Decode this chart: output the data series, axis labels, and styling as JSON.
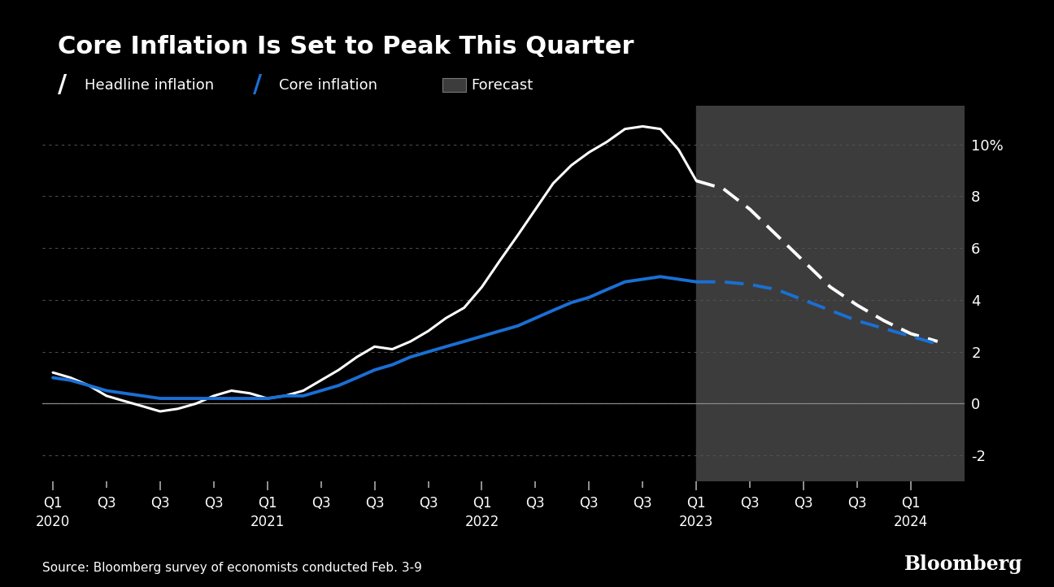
{
  "title": "Core Inflation Is Set to Peak This Quarter",
  "source": "Source: Bloomberg survey of economists conducted Feb. 3-9",
  "background_color": "#000000",
  "plot_bg_color": "#000000",
  "forecast_bg_color": "#3c3c3c",
  "ylim": [
    -3,
    11.5
  ],
  "yticks": [
    -2,
    0,
    2,
    4,
    6,
    8,
    10
  ],
  "ytick_labels": [
    "-2",
    "0",
    "2",
    "4",
    "6",
    "8",
    "10%"
  ],
  "forecast_start_x": 12.0,
  "headline_color": "#ffffff",
  "core_color": "#1a6fd4",
  "headline_actual_x": [
    0,
    0.33,
    0.67,
    1.0,
    1.33,
    1.67,
    2.0,
    2.33,
    2.67,
    3.0,
    3.33,
    3.67,
    4.0,
    4.33,
    4.67,
    5.0,
    5.33,
    5.67,
    6.0,
    6.33,
    6.67,
    7.0,
    7.33,
    7.67,
    8.0,
    8.33,
    8.67,
    9.0,
    9.33,
    9.67,
    10.0,
    10.33,
    10.67,
    11.0,
    11.33,
    11.67,
    12.0
  ],
  "headline_actual_y": [
    1.2,
    1.0,
    0.7,
    0.3,
    0.1,
    -0.1,
    -0.3,
    -0.2,
    0.0,
    0.3,
    0.5,
    0.4,
    0.2,
    0.3,
    0.5,
    0.9,
    1.3,
    1.8,
    2.2,
    2.1,
    2.4,
    2.8,
    3.3,
    3.7,
    4.5,
    5.5,
    6.5,
    7.5,
    8.5,
    9.2,
    9.7,
    10.1,
    10.6,
    10.7,
    10.6,
    9.8,
    8.6
  ],
  "headline_forecast_x": [
    12.0,
    12.5,
    13.0,
    13.5,
    14.0,
    14.5,
    15.0,
    15.5,
    16.0,
    16.5
  ],
  "headline_forecast_y": [
    8.6,
    8.3,
    7.5,
    6.5,
    5.5,
    4.5,
    3.8,
    3.2,
    2.7,
    2.4
  ],
  "core_actual_x": [
    0,
    0.33,
    0.67,
    1.0,
    1.33,
    1.67,
    2.0,
    2.33,
    2.67,
    3.0,
    3.33,
    3.67,
    4.0,
    4.33,
    4.67,
    5.0,
    5.33,
    5.67,
    6.0,
    6.33,
    6.67,
    7.0,
    7.33,
    7.67,
    8.0,
    8.33,
    8.67,
    9.0,
    9.33,
    9.67,
    10.0,
    10.33,
    10.67,
    11.0,
    11.33,
    11.67,
    12.0
  ],
  "core_actual_y": [
    1.0,
    0.9,
    0.7,
    0.5,
    0.4,
    0.3,
    0.2,
    0.2,
    0.2,
    0.2,
    0.2,
    0.2,
    0.2,
    0.3,
    0.3,
    0.5,
    0.7,
    1.0,
    1.3,
    1.5,
    1.8,
    2.0,
    2.2,
    2.4,
    2.6,
    2.8,
    3.0,
    3.3,
    3.6,
    3.9,
    4.1,
    4.4,
    4.7,
    4.8,
    4.9,
    4.8,
    4.7
  ],
  "core_forecast_x": [
    12.0,
    12.5,
    13.0,
    13.5,
    14.0,
    14.5,
    15.0,
    15.5,
    16.0,
    16.5
  ],
  "core_forecast_y": [
    4.7,
    4.7,
    4.6,
    4.4,
    4.0,
    3.6,
    3.2,
    2.9,
    2.6,
    2.3
  ],
  "x_tick_positions": [
    0,
    2,
    4,
    6,
    8,
    10,
    12,
    14,
    16
  ],
  "x_tick_labels_top": [
    "Q1",
    "Q3",
    "Q1",
    "Q3",
    "Q1",
    "Q3",
    "Q1",
    "Q3",
    "Q1"
  ],
  "x_tick_labels_bottom": [
    "2020",
    "",
    "2021",
    "",
    "2022",
    "",
    "2023",
    "",
    "2024"
  ],
  "x_minor_positions": [
    1,
    3,
    5,
    7,
    9,
    11,
    13,
    15
  ],
  "xlim": [
    -0.2,
    17.0
  ],
  "grid_color": "#555555",
  "zero_line_color": "#888888",
  "tick_color": "#aaaaaa"
}
